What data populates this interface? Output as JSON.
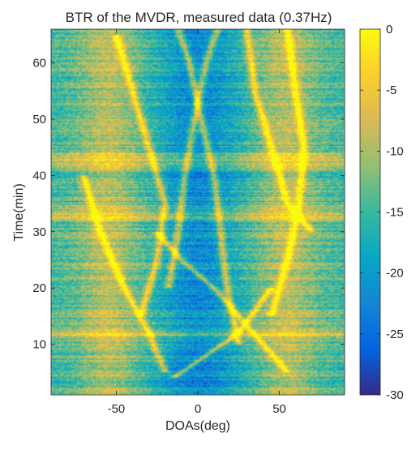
{
  "chart_data": {
    "type": "heatmap",
    "title": "BTR of the MVDR, measured data (0.37Hz)",
    "xlabel": "DOAs(deg)",
    "ylabel": "Time(min)",
    "xlim": [
      -90,
      90
    ],
    "ylim": [
      1,
      66
    ],
    "xticks": [
      -50,
      0,
      50
    ],
    "yticks": [
      10,
      20,
      30,
      40,
      50,
      60
    ],
    "colorbar": {
      "range": [
        -30,
        0
      ],
      "ticks": [
        0,
        -5,
        -10,
        -15,
        -20,
        -25,
        -30
      ],
      "colormap": "parula",
      "colors": [
        "#352a87",
        "#0363e1",
        "#1485d4",
        "#06a7c6",
        "#38b99e",
        "#92bf73",
        "#d9ba56",
        "#fcce2e",
        "#f9fb0e"
      ]
    },
    "background_level_db": -15,
    "low_region": {
      "center_deg": 0,
      "half_width_deg": 30,
      "level_db": -22
    },
    "tracks": [
      {
        "doa_deg": [
          -12,
          -5,
          2,
          10,
          14,
          18,
          25
        ],
        "time_min": [
          66,
          60,
          50,
          40,
          30,
          20,
          10
        ]
      },
      {
        "doa_deg": [
          12,
          5,
          -2,
          -8,
          -12,
          -18
        ],
        "time_min": [
          66,
          60,
          50,
          40,
          30,
          20
        ]
      },
      {
        "doa_deg": [
          -25,
          -10,
          10,
          25,
          40,
          55
        ],
        "time_min": [
          30,
          25,
          20,
          15,
          10,
          5
        ]
      },
      {
        "doa_deg": [
          45,
          35,
          25,
          15,
          0,
          -15
        ],
        "time_min": [
          20,
          16,
          12,
          10,
          7,
          4
        ]
      },
      {
        "doa_deg": [
          -50,
          -40,
          -30,
          -20,
          -25,
          -35
        ],
        "time_min": [
          65,
          55,
          45,
          35,
          25,
          15
        ]
      },
      {
        "doa_deg": [
          55,
          60,
          65,
          62,
          55,
          45
        ],
        "time_min": [
          66,
          55,
          45,
          35,
          25,
          15
        ]
      },
      {
        "doa_deg": [
          -70,
          -60,
          -45,
          -30,
          -20
        ],
        "time_min": [
          40,
          30,
          20,
          12,
          5
        ]
      },
      {
        "doa_deg": [
          30,
          35,
          45,
          55,
          70
        ],
        "time_min": [
          66,
          55,
          45,
          35,
          30
        ]
      }
    ],
    "bright_bands_min": [
      33,
      43,
      12
    ]
  }
}
